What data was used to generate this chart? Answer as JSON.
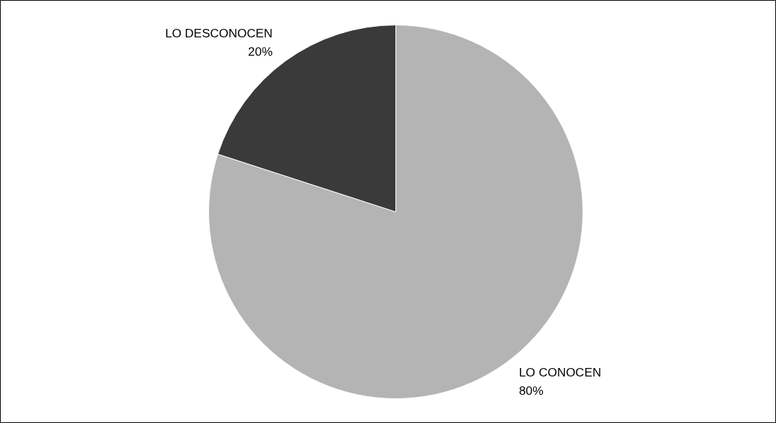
{
  "chart_data": {
    "type": "pie",
    "categories": [
      "LO CONOCEN",
      "LO DESCONOCEN"
    ],
    "values": [
      80,
      20
    ],
    "value_labels": [
      "80%",
      "20%"
    ],
    "colors": [
      "#b4b4b4",
      "#3a3a3a"
    ],
    "legend": false
  }
}
